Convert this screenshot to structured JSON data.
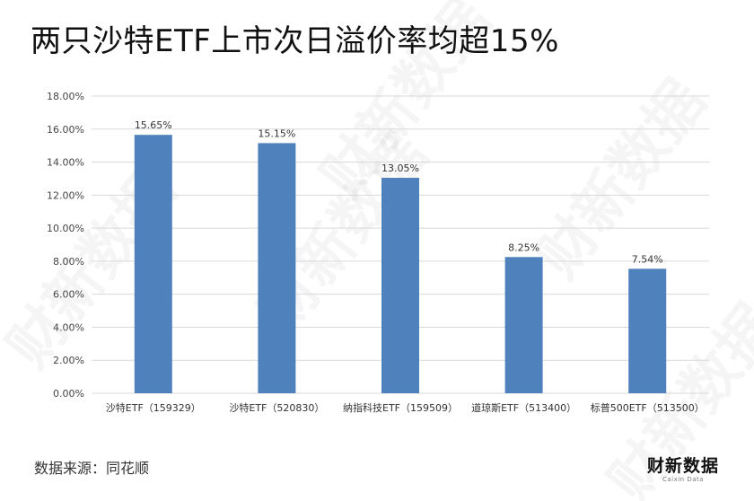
{
  "header": {
    "title": "两只沙特ETF上市次日溢价率均超15%"
  },
  "chart_data": {
    "type": "bar",
    "categories": [
      "沙特ETF（159329）",
      "沙特ETF（520830）",
      "纳指科技ETF（159509）",
      "道琼斯ETF（513400）",
      "标普500ETF（513500）"
    ],
    "values": [
      15.65,
      15.15,
      13.05,
      8.25,
      7.54
    ],
    "value_labels": [
      "15.65%",
      "15.15%",
      "13.05%",
      "8.25%",
      "7.54%"
    ],
    "yticks": [
      "0.00%",
      "2.00%",
      "4.00%",
      "6.00%",
      "8.00%",
      "10.00%",
      "12.00%",
      "14.00%",
      "16.00%",
      "18.00%"
    ],
    "ylim": [
      0,
      18
    ],
    "ytick_step": 2,
    "grid": true,
    "bar_color": "#4f81bd",
    "grid_color": "#d9d9d9",
    "title": "",
    "xlabel": "",
    "ylabel": ""
  },
  "footer": {
    "source": "数据来源：同花顺"
  },
  "logo": {
    "main": "财新数据",
    "sub": "Caixin Data"
  },
  "watermark": {
    "text": "财新数据"
  }
}
